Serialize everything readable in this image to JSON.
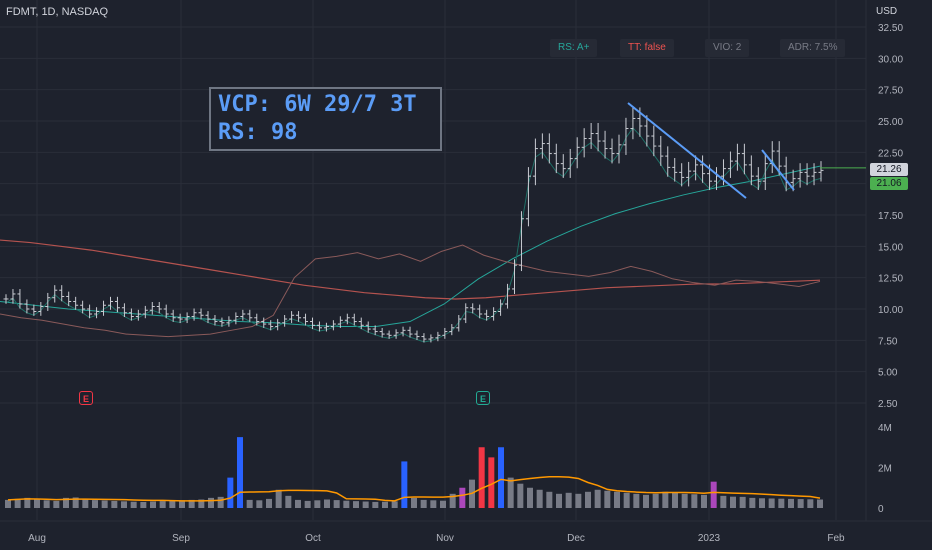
{
  "header": {
    "title": "FDMT, 1D, NASDAQ",
    "currency": "USD"
  },
  "badges": [
    {
      "label": "RS: A+",
      "color": "#26a69a"
    },
    {
      "label": "TT: false",
      "color": "#ef5350"
    },
    {
      "label": "VIO: 2",
      "color": "#787b86"
    },
    {
      "label": "ADR: 7.5%",
      "color": "#787b86"
    }
  ],
  "annotation": {
    "line1": "VCP: 6W 29/7 3T",
    "line2": "RS: 98"
  },
  "price_tags": {
    "last": "21.26",
    "close": "21.06"
  },
  "earnings_markers": [
    {
      "label": "E",
      "color": "#f23645"
    },
    {
      "label": "E",
      "color": "#22ab94"
    }
  ],
  "colors": {
    "background": "#1e222d",
    "grid": "#2a2e39",
    "bar": "#c9ccd3",
    "ma_red": "#b5534f",
    "ma_teal": "#26a69a",
    "rs_line": "#8a5a5a",
    "vol_gray": "#787b86",
    "vol_blue": "#2962ff",
    "vol_red": "#f23645",
    "vol_purple": "#ab47bc",
    "vol_avg": "#ff9800"
  },
  "chart_data": {
    "type": "candlestick",
    "price_axis": {
      "ticks": [
        "32.50",
        "30.00",
        "27.50",
        "25.00",
        "22.50",
        "20.00",
        "17.50",
        "15.00",
        "12.50",
        "10.00",
        "7.50",
        "5.00",
        "2.50"
      ],
      "range": [
        0,
        33.5
      ]
    },
    "volume_axis": {
      "ticks": [
        "4M",
        "2M",
        "0"
      ],
      "range": [
        0,
        4200000
      ]
    },
    "x_labels": [
      "Aug",
      "Sep",
      "Oct",
      "Nov",
      "Dec",
      "2023",
      "Feb"
    ],
    "price_series": [
      10.8,
      11.2,
      10.4,
      10.0,
      9.8,
      10.2,
      10.9,
      11.5,
      11.0,
      10.6,
      10.3,
      10.0,
      9.6,
      9.8,
      10.3,
      10.6,
      10.1,
      9.7,
      9.4,
      9.6,
      9.9,
      10.2,
      10.0,
      9.6,
      9.3,
      9.2,
      9.4,
      9.7,
      9.5,
      9.2,
      9.0,
      8.9,
      9.1,
      9.4,
      9.6,
      9.3,
      9.0,
      8.8,
      8.6,
      8.9,
      9.2,
      9.5,
      9.3,
      9.0,
      8.7,
      8.5,
      8.6,
      8.8,
      9.1,
      9.3,
      9.0,
      8.7,
      8.4,
      8.2,
      8.0,
      7.9,
      8.1,
      8.3,
      8.0,
      7.8,
      7.6,
      7.7,
      7.9,
      8.2,
      8.5,
      9.2,
      10.1,
      10.0,
      9.6,
      9.4,
      9.8,
      10.4,
      11.6,
      13.5,
      17.2,
      20.6,
      22.8,
      23.2,
      22.4,
      21.6,
      21.2,
      22.0,
      22.9,
      23.6,
      24.0,
      23.4,
      22.8,
      22.4,
      23.1,
      24.4,
      25.2,
      24.6,
      23.8,
      23.0,
      22.2,
      21.3,
      20.9,
      20.5,
      21.0,
      21.5,
      20.8,
      20.2,
      20.6,
      21.2,
      21.8,
      22.4,
      21.5,
      20.6,
      20.2,
      21.6,
      22.6,
      21.4,
      20.1,
      20.4,
      20.9,
      20.6,
      20.9,
      21.06
    ],
    "volume_series": [
      400000,
      450000,
      500000,
      420000,
      380000,
      350000,
      500000,
      520000,
      420000,
      390000,
      370000,
      350000,
      330000,
      310000,
      300000,
      320000,
      340000,
      360000,
      380000,
      400000,
      420000,
      500000,
      550000,
      1500000,
      3500000,
      400000,
      380000,
      450000,
      900000,
      600000,
      400000,
      350000,
      380000,
      420000,
      390000,
      360000,
      340000,
      320000,
      300000,
      310000,
      330000,
      2300000,
      500000,
      400000,
      380000,
      360000,
      700000,
      1000000,
      1400000,
      3000000,
      2500000,
      3000000,
      1500000,
      1200000,
      1000000,
      900000,
      800000,
      700000,
      750000,
      700000,
      800000,
      900000,
      850000,
      800000,
      750000,
      700000,
      650000,
      700000,
      800000,
      750000,
      700000,
      680000,
      650000,
      1300000,
      600000,
      560000,
      550000,
      500000,
      480000,
      470000,
      460000,
      450000,
      440000,
      430000,
      420000
    ],
    "rs_series": [
      9.6,
      9.3,
      9.1,
      8.8,
      8.5,
      8.3,
      8.0,
      7.9,
      7.8,
      7.9,
      8.0,
      8.3,
      8.6,
      9.5,
      12.5,
      14.0,
      14.2,
      14.5,
      14.0,
      14.4,
      13.8,
      14.6,
      15.1,
      14.3,
      13.8,
      13.4,
      13.0,
      12.8,
      12.6,
      12.9,
      13.4,
      13.0,
      12.4,
      12.1,
      11.9,
      12.3,
      12.2,
      12.0,
      11.8,
      12.2
    ],
    "ma_long_series": [
      15.5,
      15.3,
      15.0,
      14.7,
      14.3,
      13.9,
      13.5,
      13.1,
      12.7,
      12.3,
      11.9,
      11.6,
      11.3,
      11.1,
      10.9,
      10.8,
      10.9,
      11.1,
      11.3,
      11.5,
      11.7,
      11.8,
      11.9,
      12.0,
      12.0,
      12.1,
      12.2,
      12.3
    ],
    "ma_mid_series": [
      10.6,
      10.3,
      10.0,
      9.8,
      9.6,
      9.4,
      9.2,
      9.0,
      8.9,
      8.7,
      8.6,
      8.6,
      9.0,
      10.4,
      12.4,
      14.0,
      15.4,
      16.6,
      17.6,
      18.4,
      19.1,
      19.7,
      20.2,
      20.8,
      21.4
    ]
  }
}
